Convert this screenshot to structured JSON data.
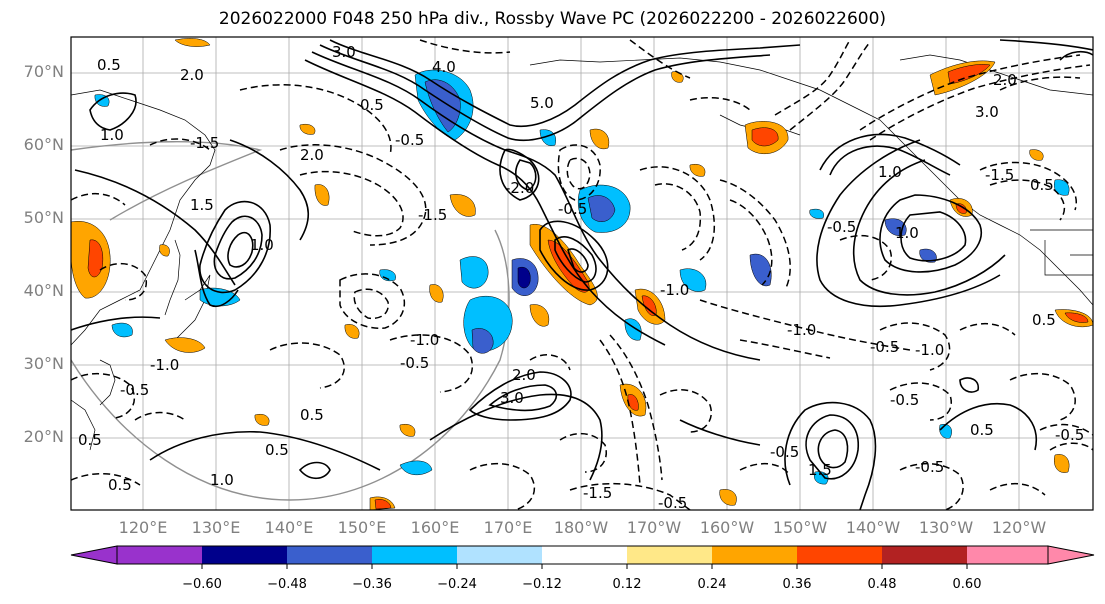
{
  "title": "2026022000 F048 250 hPa div., Rossby Wave PC (2026022200 - 2026022600)",
  "map": {
    "lat_labels": [
      "70°N",
      "60°N",
      "50°N",
      "40°N",
      "30°N",
      "20°N"
    ],
    "lon_labels": [
      "120°E",
      "130°E",
      "140°E",
      "150°E",
      "160°E",
      "170°E",
      "180°W",
      "170°W",
      "160°W",
      "150°W",
      "140°W",
      "130°W",
      "120°W"
    ],
    "contour_labels": [
      "3.0",
      "2.0",
      "1.0",
      "0.5",
      "5.0",
      "4.0",
      "1.5",
      "1.0",
      "0.5",
      "2.0",
      "-0.5",
      "-1.0",
      "-1.5",
      "-2.0",
      "-0.5",
      "-1.0",
      "3.0",
      "-0.5",
      "-0.5",
      "-1.0",
      "-0.5",
      "-1.0",
      "-0.5",
      "0.5",
      "-1.5",
      "0.5",
      "2.0",
      "3.0",
      "1.0",
      "-1.5",
      "-0.5",
      "1.0",
      "1.5",
      "0.5",
      "-0.5",
      "-1.0",
      "-0.5",
      "0.5",
      "0.5",
      "0.5",
      "2.0",
      "-0.5",
      "-1.5",
      "0.5",
      "1.0",
      "-0.5"
    ]
  },
  "colorbar": {
    "ticks": [
      "−0.60",
      "−0.48",
      "−0.36",
      "−0.24",
      "−0.12",
      "0.12",
      "0.24",
      "0.36",
      "0.48",
      "0.60"
    ],
    "colors": [
      "#9932cc",
      "#00008b",
      "#3a5fcd",
      "#00bfff",
      "#b0e2ff",
      "#ffffff",
      "#ffe888",
      "#ffa500",
      "#ff4500",
      "#b22222",
      "#ff88aa"
    ]
  }
}
